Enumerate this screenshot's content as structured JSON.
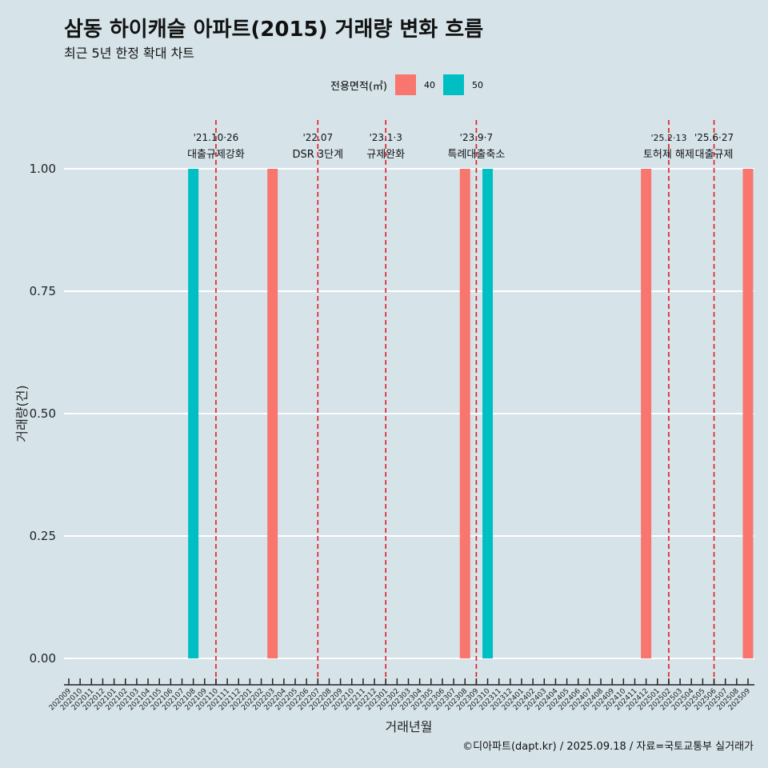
{
  "title": "삼동 하이캐슬 아파트(2015) 거래량 변화 흐름",
  "subtitle": "최근 5년 한정 확대 차트",
  "caption": "©디아파트(dapt.kr) / 2025.09.18 / 자료=국토교통부 실거래가",
  "legend": {
    "title": "전용면적(㎡)",
    "items": [
      {
        "label": "40",
        "color": "#f8766d"
      },
      {
        "label": "50",
        "color": "#00bfc4"
      }
    ]
  },
  "chart_data": {
    "type": "bar",
    "xlabel": "거래년월",
    "ylabel": "거래량(건)",
    "ylim": [
      0,
      1
    ],
    "yticks": [
      "0.00",
      "0.25",
      "0.50",
      "0.75",
      "1.00"
    ],
    "categories": [
      "202009",
      "202010",
      "202011",
      "202012",
      "202101",
      "202102",
      "202103",
      "202104",
      "202105",
      "202106",
      "202107",
      "202108",
      "202109",
      "202110",
      "202111",
      "202112",
      "202201",
      "202202",
      "202203",
      "202204",
      "202205",
      "202206",
      "202207",
      "202208",
      "202209",
      "202210",
      "202211",
      "202212",
      "202301",
      "202302",
      "202303",
      "202304",
      "202305",
      "202306",
      "202307",
      "202308",
      "202309",
      "202310",
      "202311",
      "202312",
      "202401",
      "202402",
      "202403",
      "202404",
      "202405",
      "202406",
      "202407",
      "202408",
      "202409",
      "202410",
      "202411",
      "202412",
      "202501",
      "202502",
      "202503",
      "202504",
      "202505",
      "202506",
      "202507",
      "202508",
      "202509"
    ],
    "bars": [
      {
        "month": "202108",
        "area": "50",
        "value": 1
      },
      {
        "month": "202203",
        "area": "40",
        "value": 1
      },
      {
        "month": "202308",
        "area": "40",
        "value": 1
      },
      {
        "month": "202310",
        "area": "50",
        "value": 1
      },
      {
        "month": "202412",
        "area": "40",
        "value": 1
      },
      {
        "month": "202509",
        "area": "40",
        "value": 1
      }
    ],
    "annotations": [
      {
        "month": "202110",
        "date": "'21.10·26",
        "label": "대출규제강화"
      },
      {
        "month": "202207",
        "date": "'22.07",
        "label": "DSR 3단계"
      },
      {
        "month": "202301",
        "date": "'23.1·3",
        "label": "규제완화"
      },
      {
        "month": "202309",
        "date": "'23.9·7",
        "label": "특례대출축소"
      },
      {
        "month": "202502",
        "date": "'25.2·13",
        "label": "토허제 해제"
      },
      {
        "month": "202506",
        "date": "'25.6·27",
        "label": "대출규제"
      }
    ]
  }
}
